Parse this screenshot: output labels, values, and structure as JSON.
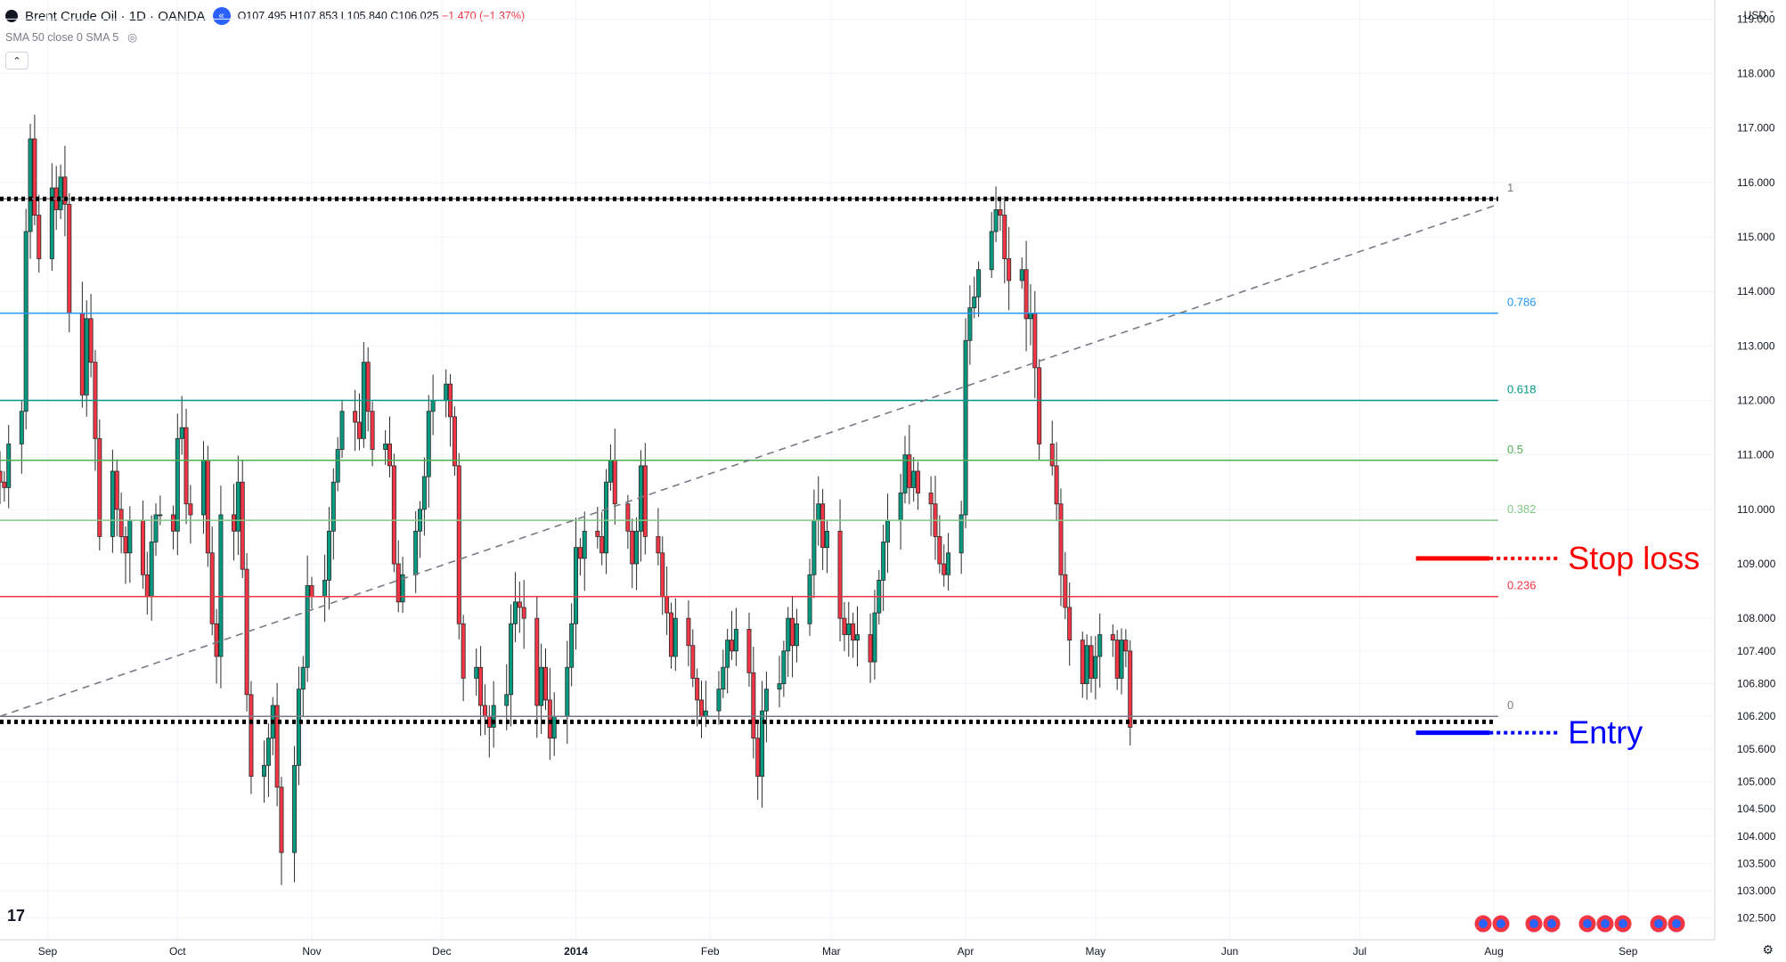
{
  "header": {
    "symbol": "Brent Crude Oil · 1D · OANDA",
    "ohlc": {
      "open": "O107.495",
      "high": "H107.853",
      "low": "L105.840",
      "close": "C106.025",
      "change": "−1.470 (−1.37%)"
    },
    "indicator": "SMA 50 close 0 SMA 5",
    "currency": "USD"
  },
  "colors": {
    "up": "#089981",
    "down": "#f23645",
    "candle_border": "#2b2b2b",
    "fib_1": "#787b86",
    "fib_0786": "#2196f3",
    "fib_0618": "#009688",
    "fib_05": "#4caf50",
    "fib_0382": "#81c784",
    "fib_0236": "#f23645",
    "fib_0": "#787b86",
    "stop": "#ff0000",
    "entry": "#0000ff"
  },
  "chart_data": {
    "type": "candlestick",
    "price_range": [
      102.1,
      119.35
    ],
    "price_ticks": [
      "119.000",
      "118.000",
      "117.000",
      "116.000",
      "115.000",
      "114.000",
      "113.000",
      "112.000",
      "111.000",
      "110.000",
      "109.000",
      "108.000",
      "107.400",
      "106.800",
      "106.200",
      "105.600",
      "105.000",
      "104.500",
      "104.000",
      "103.500",
      "103.000",
      "102.500"
    ],
    "time_range": [
      "2013-08-21",
      "2014-09-21"
    ],
    "time_ticks": [
      {
        "label": "Sep",
        "date": "2013-09-01"
      },
      {
        "label": "Oct",
        "date": "2013-10-01"
      },
      {
        "label": "Nov",
        "date": "2013-11-01"
      },
      {
        "label": "Dec",
        "date": "2013-12-01"
      },
      {
        "label": "2014",
        "date": "2014-01-01"
      },
      {
        "label": "Feb",
        "date": "2014-02-01"
      },
      {
        "label": "Mar",
        "date": "2014-03-01"
      },
      {
        "label": "Apr",
        "date": "2014-04-01"
      },
      {
        "label": "May",
        "date": "2014-05-01"
      },
      {
        "label": "Jun",
        "date": "2014-06-01"
      },
      {
        "label": "Jul",
        "date": "2014-07-01"
      },
      {
        "label": "Aug",
        "date": "2014-08-01"
      },
      {
        "label": "Sep",
        "date": "2014-09-01"
      }
    ],
    "closes_start": "2013-08-21",
    "closes": [
      110.5,
      110.4,
      111.2,
      111.8,
      115.1,
      116.8,
      115.4,
      114.6,
      115.9,
      115.5,
      116.1,
      115.6,
      113.6,
      112.1,
      113.5,
      112.7,
      111.3,
      109.5,
      110.7,
      110.0,
      109.5,
      109.2,
      109.8,
      108.8,
      108.4,
      109.4,
      109.9,
      109.9,
      109.6,
      111.3,
      111.5,
      110.1,
      109.9,
      110.9,
      109.2,
      107.9,
      107.3,
      109.9,
      109.6,
      110.5,
      108.9,
      106.6,
      105.1,
      105.3,
      105.8,
      106.4,
      104.9,
      103.7,
      105.3,
      106.7,
      107.1,
      108.6,
      108.4,
      108.7,
      109.6,
      110.5,
      111.1,
      111.8,
      111.6,
      111.3,
      112.7,
      111.8,
      111.1,
      111.2,
      110.8,
      109.0,
      108.3,
      108.8,
      109.6,
      110.0,
      110.6,
      111.8,
      112.0,
      112.3,
      111.7,
      110.8,
      107.9,
      106.9,
      107.1,
      106.4,
      106.2,
      106.0,
      106.4,
      106.6,
      107.9,
      108.3,
      108.2,
      108.0,
      106.4,
      107.1,
      106.5,
      105.8,
      106.2,
      107.1,
      107.9,
      109.3,
      109.1,
      109.6,
      109.5,
      109.2,
      110.5,
      110.9,
      110.1,
      109.6,
      109.0,
      109.6,
      110.8,
      109.5,
      109.2,
      108.4,
      108.1,
      107.3,
      108.0,
      107.5,
      106.9,
      106.5,
      106.2,
      106.3,
      106.7,
      107.1,
      107.6,
      107.4,
      107.8,
      107.0,
      105.8,
      105.1,
      106.3,
      106.7,
      106.8,
      107.4,
      108.0,
      107.5,
      107.9,
      108.8,
      109.8,
      110.1,
      109.3,
      109.6,
      108.0,
      107.7,
      107.9,
      107.6,
      107.7,
      107.2,
      108.1,
      108.7,
      109.4,
      109.8,
      110.3,
      111.0,
      110.4,
      110.7,
      110.3,
      110.1,
      109.5,
      109.0,
      108.8,
      109.2,
      109.9,
      113.1,
      113.7,
      113.9,
      114.4,
      115.1,
      115.5,
      115.4,
      114.6,
      114.2,
      114.4,
      113.5,
      113.6,
      112.6,
      111.2,
      110.8,
      110.1,
      108.8,
      108.2,
      107.6,
      106.8,
      107.5,
      106.9,
      107.3,
      107.7,
      107.6,
      106.9,
      107.6,
      107.4,
      106.0
    ],
    "fibonacci": {
      "start_date": "2013-08-21",
      "end_date": "2014-08-02",
      "levels": [
        {
          "ratio": "1",
          "price": 115.7
        },
        {
          "ratio": "0.786",
          "price": 113.6
        },
        {
          "ratio": "0.618",
          "price": 112.0
        },
        {
          "ratio": "0.5",
          "price": 110.9
        },
        {
          "ratio": "0.382",
          "price": 109.8
        },
        {
          "ratio": "0.236",
          "price": 108.4
        },
        {
          "ratio": "0",
          "price": 106.2
        }
      ]
    },
    "trendline": {
      "from": {
        "date": "2013-08-21",
        "price": 106.2
      },
      "to": {
        "date": "2014-08-02",
        "price": 115.6
      }
    },
    "support_line": {
      "price": 106.1,
      "from": "2013-08-21",
      "to": "2014-08-01"
    },
    "resistance_line": {
      "price": 115.7,
      "from": "2013-08-21",
      "to": "2014-08-02"
    },
    "annotations": [
      {
        "text": "Stop loss",
        "price": 109.1,
        "from": "2014-07-14",
        "to": "2014-07-31"
      },
      {
        "text": "Entry",
        "price": 105.9,
        "from": "2014-07-14",
        "to": "2014-07-31"
      }
    ]
  }
}
